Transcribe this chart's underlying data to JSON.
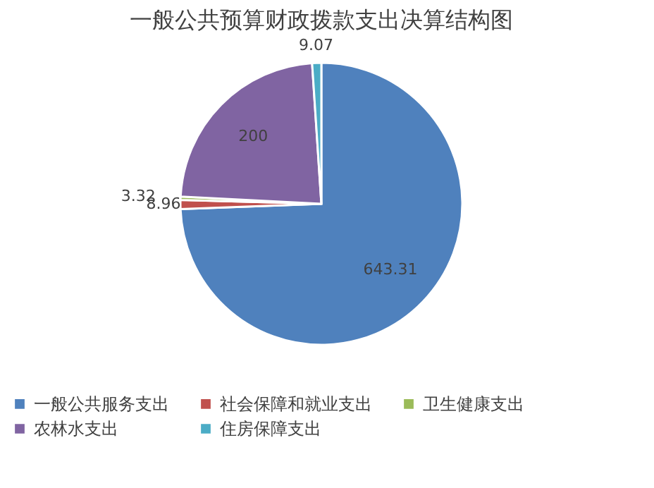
{
  "chart_data": {
    "type": "pie",
    "title": "一般公共预算财政拨款支出决算结构图",
    "categories": [
      "一般公共服务支出",
      "社会保障和就业支出",
      "卫生健康支出",
      "农林水支出",
      "住房保障支出"
    ],
    "values": [
      643.31,
      8.96,
      3.32,
      200,
      9.07
    ],
    "colors": [
      "#4f81bd",
      "#c0504d",
      "#9bbb59",
      "#8064a2",
      "#4bacc6"
    ],
    "data_labels": true,
    "legend": "bottom"
  }
}
